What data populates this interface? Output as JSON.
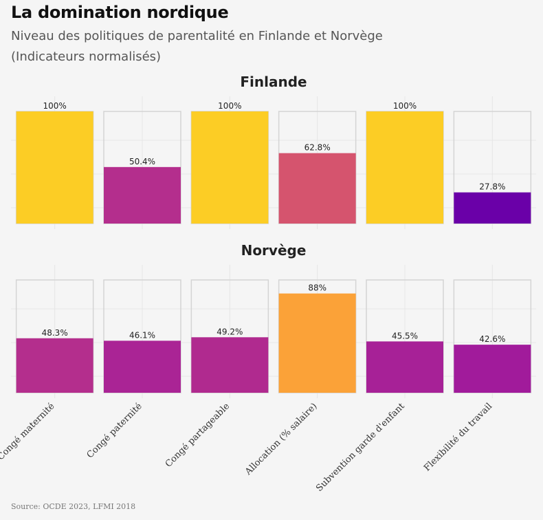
{
  "title": "La domination nordique",
  "subtitle_line1": "Niveau des politiques de parentalité en Finlande et Norvège",
  "subtitle_line2": "(Indicateurs normalisés)",
  "caption": "Source: OCDE 2023, LFMI 2018",
  "chart_data": {
    "type": "bar",
    "categories": [
      "Congé maternité",
      "Congé paternité",
      "Congé partageable",
      "Allocation (% salaire)",
      "Subvention garde d'enfant",
      "Flexibilité du travail"
    ],
    "ylim": [
      0,
      100
    ],
    "series": [
      {
        "name": "Finlande",
        "values": [
          100,
          50.4,
          100,
          62.8,
          100,
          27.8
        ],
        "labels": [
          "100%",
          "50.4%",
          "100%",
          "62.8%",
          "100%",
          "27.8%"
        ],
        "colors": [
          "#fccd25",
          "#b42e8d",
          "#fccd25",
          "#d5546e",
          "#fccd25",
          "#6a00a8"
        ]
      },
      {
        "name": "Norvège",
        "values": [
          48.3,
          46.1,
          49.2,
          88,
          45.5,
          42.6
        ],
        "labels": [
          "48.3%",
          "46.1%",
          "49.2%",
          "88%",
          "45.5%",
          "42.6%"
        ],
        "colors": [
          "#b42e8d",
          "#aa2495",
          "#b02a8f",
          "#fba238",
          "#a72197",
          "#a11b9b"
        ]
      }
    ],
    "xlabel": "",
    "ylabel": ""
  }
}
